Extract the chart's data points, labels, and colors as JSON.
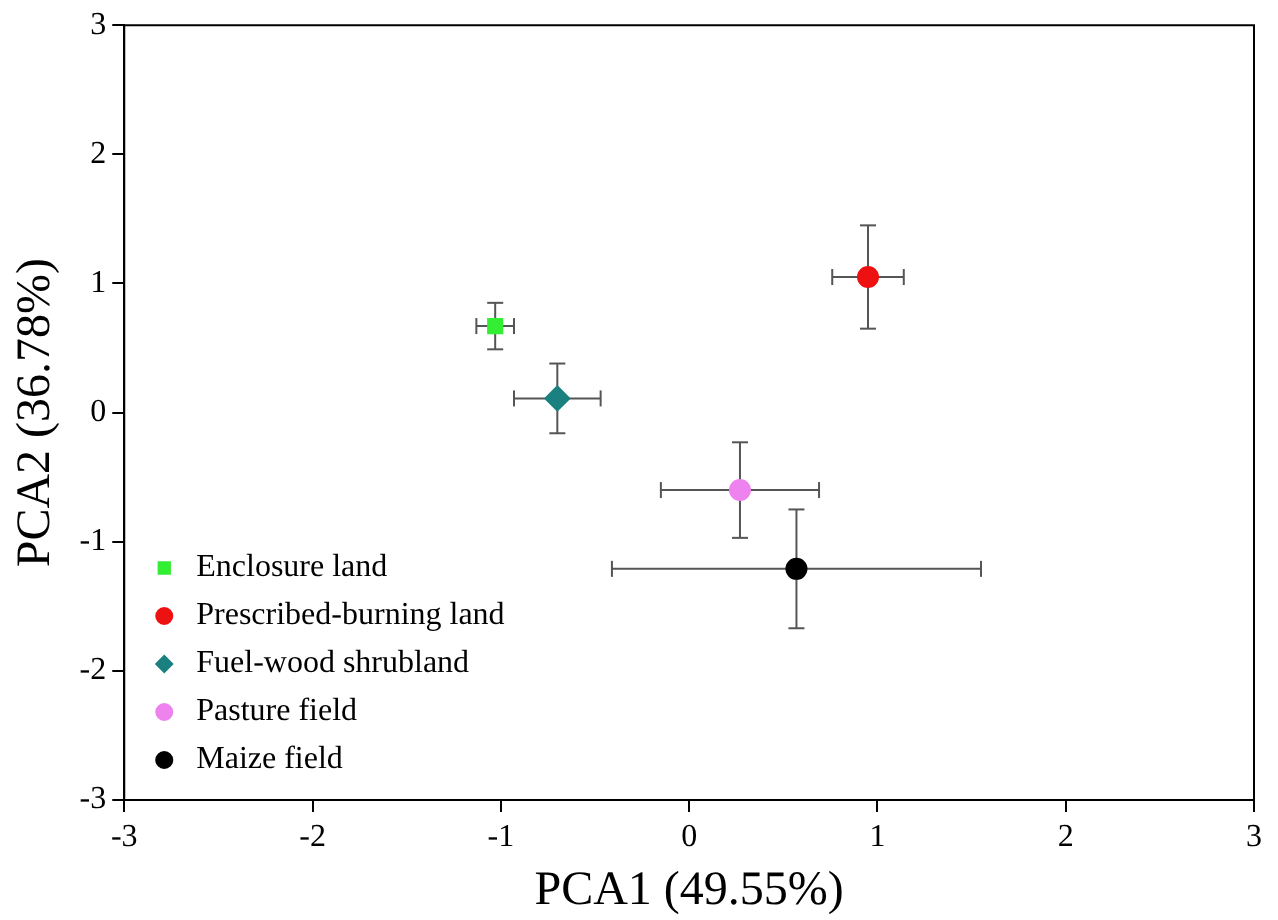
{
  "chart_data": {
    "type": "scatter",
    "xlabel": "PCA1 (49.55%)",
    "ylabel": "PCA2 (36.78%)",
    "xlim": [
      -3,
      3
    ],
    "ylim": [
      -3,
      3
    ],
    "xticks": [
      -3,
      -2,
      -1,
      0,
      1,
      2,
      3
    ],
    "yticks": [
      -3,
      -2,
      -1,
      0,
      1,
      2,
      3
    ],
    "grid": false,
    "legend": "bottom left",
    "series": [
      {
        "name": "Enclosure land",
        "color": "#33ee33",
        "marker": "square",
        "x": [
          -1.03
        ],
        "values": [
          0.67
        ],
        "xerrors": [
          0.1
        ],
        "errors": [
          0.18
        ]
      },
      {
        "name": "Prescribed-burning land",
        "color": "#ee1111",
        "marker": "circle",
        "x": [
          0.95
        ],
        "values": [
          1.05
        ],
        "xerrors": [
          0.19
        ],
        "errors": [
          0.4
        ]
      },
      {
        "name": "Fuel-wood shrubland",
        "color": "#1a8080",
        "marker": "diamond",
        "x": [
          -0.7
        ],
        "values": [
          0.11
        ],
        "xerrors": [
          0.23
        ],
        "errors": [
          0.27
        ]
      },
      {
        "name": "Pasture field",
        "color": "#ee82ee",
        "marker": "circle",
        "x": [
          0.27
        ],
        "values": [
          -0.6
        ],
        "xerrors": [
          0.42
        ],
        "errors": [
          0.37
        ]
      },
      {
        "name": "Maize field",
        "color": "#000000",
        "marker": "circle",
        "x": [
          0.57
        ],
        "values": [
          -1.21
        ],
        "xerrors": [
          0.98
        ],
        "errors": [
          0.46
        ]
      }
    ]
  }
}
